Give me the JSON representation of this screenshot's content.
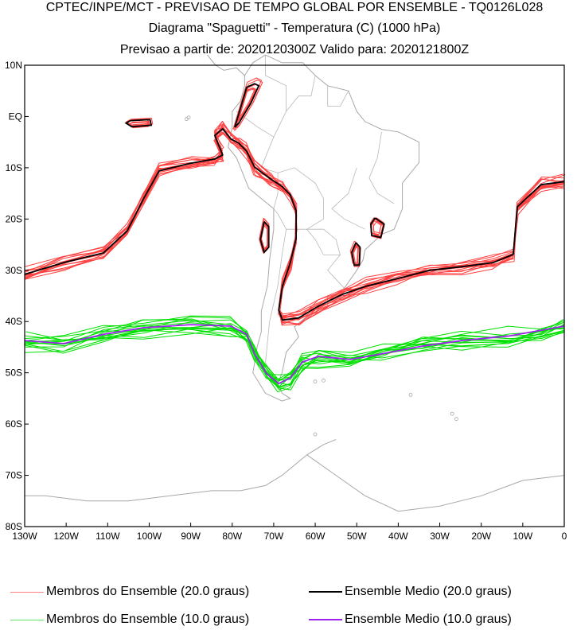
{
  "header": {
    "line1": "CPTEC/INPE/MCT - PREVISAO DE TEMPO GLOBAL POR ENSEMBLE - TQ0126L028",
    "line2": "Diagrama \"Spaguetti\" - Temperatura (C) (1000 hPa)",
    "line3": "Previsao a partir de: 2020120300Z  Valido para: 2020121800Z"
  },
  "chart_data": {
    "type": "line",
    "projection": "lat-lon",
    "xlim": [
      -130,
      0
    ],
    "ylim": [
      -80,
      10
    ],
    "lat_ticks": [
      {
        "v": 10,
        "label": "10N"
      },
      {
        "v": 0,
        "label": "EQ"
      },
      {
        "v": -10,
        "label": "10S"
      },
      {
        "v": -20,
        "label": "20S"
      },
      {
        "v": -30,
        "label": "30S"
      },
      {
        "v": -40,
        "label": "40S"
      },
      {
        "v": -50,
        "label": "50S"
      },
      {
        "v": -60,
        "label": "60S"
      },
      {
        "v": -70,
        "label": "70S"
      },
      {
        "v": -80,
        "label": "80S"
      }
    ],
    "lon_ticks": [
      {
        "v": -130,
        "label": "130W"
      },
      {
        "v": -120,
        "label": "120W"
      },
      {
        "v": -110,
        "label": "110W"
      },
      {
        "v": -100,
        "label": "100W"
      },
      {
        "v": -90,
        "label": "90W"
      },
      {
        "v": -80,
        "label": "80W"
      },
      {
        "v": -70,
        "label": "70W"
      },
      {
        "v": -60,
        "label": "60W"
      },
      {
        "v": -50,
        "label": "50W"
      },
      {
        "v": -40,
        "label": "40W"
      },
      {
        "v": -30,
        "label": "30W"
      },
      {
        "v": -20,
        "label": "20W"
      },
      {
        "v": -10,
        "label": "10W"
      },
      {
        "v": 0,
        "label": "0"
      }
    ],
    "members_count": 15,
    "series": [
      {
        "name": "Ensemble Medio (20.0 graus)",
        "color": "#000000",
        "member_color": "#ff4040",
        "contour": 20,
        "lonlat": [
          [
            -130,
            -30.8
          ],
          [
            -120.6,
            -28.5
          ],
          [
            -111,
            -26.6
          ],
          [
            -105.3,
            -22.3
          ],
          [
            -101.4,
            -16.1
          ],
          [
            -97.6,
            -10.6
          ],
          [
            -89.9,
            -9.1
          ],
          [
            -84.2,
            -8.3
          ],
          [
            -82.3,
            -7.5
          ],
          [
            -84.2,
            -3.7
          ],
          [
            -82.3,
            -2.4
          ],
          [
            -80.3,
            -4.4
          ],
          [
            -78.4,
            -5.2
          ],
          [
            -76.5,
            -6.8
          ],
          [
            -74.6,
            -9.9
          ],
          [
            -70.7,
            -12.2
          ],
          [
            -67.9,
            -13.7
          ],
          [
            -66,
            -15.3
          ],
          [
            -64.6,
            -18.4
          ],
          [
            -64.6,
            -23.8
          ],
          [
            -66,
            -28.5
          ],
          [
            -67.9,
            -33.1
          ],
          [
            -68.8,
            -37.8
          ],
          [
            -67.9,
            -39.7
          ],
          [
            -64,
            -39.3
          ],
          [
            -59.2,
            -37
          ],
          [
            -53.5,
            -34.7
          ],
          [
            -47.7,
            -33.1
          ],
          [
            -40.1,
            -31.6
          ],
          [
            -32.4,
            -30
          ],
          [
            -24.7,
            -29.3
          ],
          [
            -17.1,
            -28.5
          ],
          [
            -12.3,
            -26.9
          ],
          [
            -11.3,
            -17.6
          ],
          [
            -5.6,
            -13.3
          ],
          [
            0,
            -12.7
          ]
        ],
        "loops": [
          [
            [
              -79.4,
              -2.1
            ],
            [
              -76.5,
              5.7
            ],
            [
              -74.6,
              6.4
            ],
            [
              -73.6,
              6
            ],
            [
              -75.5,
              2.6
            ],
            [
              -78.4,
              -1.3
            ],
            [
              -79.4,
              -2.1
            ]
          ],
          [
            [
              -72.3,
              -20.5
            ],
            [
              -71.2,
              -21.5
            ],
            [
              -71.2,
              -25.5
            ],
            [
              -72.3,
              -26.5
            ],
            [
              -73.2,
              -24
            ],
            [
              -72.3,
              -20.5
            ]
          ],
          [
            [
              -50.2,
              -24.6
            ],
            [
              -49.2,
              -25.5
            ],
            [
              -49.4,
              -29
            ],
            [
              -50.6,
              -29
            ],
            [
              -51.2,
              -26.5
            ],
            [
              -50.2,
              -24.6
            ]
          ],
          [
            [
              -45.6,
              -19.8
            ],
            [
              -43.4,
              -21
            ],
            [
              -44.2,
              -23.6
            ],
            [
              -46.4,
              -23.2
            ],
            [
              -46.6,
              -21
            ],
            [
              -45.6,
              -19.8
            ]
          ],
          [
            [
              -104.5,
              -0.8
            ],
            [
              -99.8,
              -0.6
            ],
            [
              -99.5,
              -1.7
            ],
            [
              -104.2,
              -2.0
            ],
            [
              -105.6,
              -1.3
            ],
            [
              -104.5,
              -0.8
            ]
          ]
        ]
      },
      {
        "name": "Ensemble Medio (10.0 graus)",
        "color": "#a020f0",
        "member_color": "#00e000",
        "contour": 10,
        "lonlat": [
          [
            -130,
            -43.7
          ],
          [
            -120.6,
            -44.3
          ],
          [
            -111,
            -42.5
          ],
          [
            -101.4,
            -41.2
          ],
          [
            -89.9,
            -40.6
          ],
          [
            -80.3,
            -40.9
          ],
          [
            -76.5,
            -42.5
          ],
          [
            -74.6,
            -46.3
          ],
          [
            -71.7,
            -50.2
          ],
          [
            -68.8,
            -52.1
          ],
          [
            -66,
            -51
          ],
          [
            -63.1,
            -47.9
          ],
          [
            -59.2,
            -46.8
          ],
          [
            -51.6,
            -47.4
          ],
          [
            -43.9,
            -46.3
          ],
          [
            -34.3,
            -44.8
          ],
          [
            -24.7,
            -43.7
          ],
          [
            -13.2,
            -42.8
          ],
          [
            -5.6,
            -41.7
          ],
          [
            0,
            -40.9
          ]
        ]
      }
    ]
  },
  "legend": {
    "items": [
      {
        "label": "Membros do Ensemble (20.0 graus)",
        "color": "#ff8080"
      },
      {
        "label": "Ensemble Medio (20.0 graus)",
        "color": "#000000"
      },
      {
        "label": "Membros do Ensemble (10.0 graus)",
        "color": "#60e060"
      },
      {
        "label": "Ensemble Medio (10.0 graus)",
        "color": "#a020f0"
      }
    ]
  }
}
